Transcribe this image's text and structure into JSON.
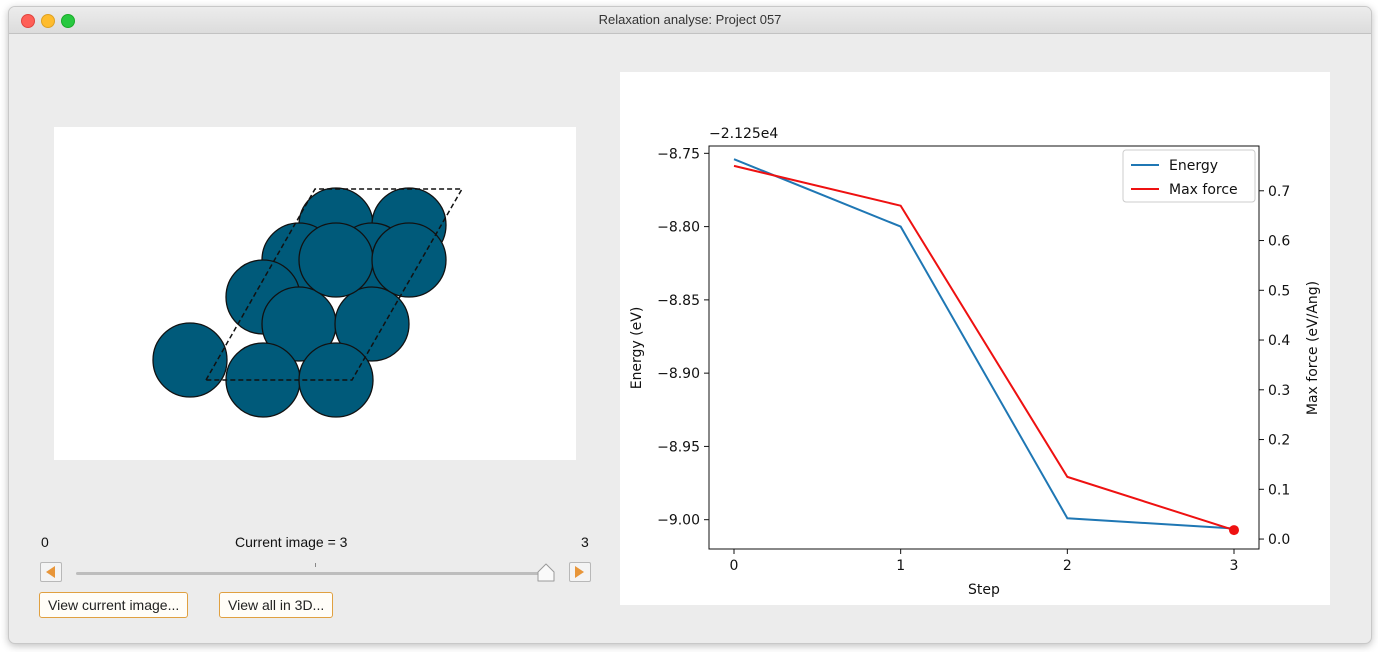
{
  "window": {
    "title": "Relaxation analyse: Project 057"
  },
  "slider": {
    "min_label": "0",
    "max_label": "3",
    "current_label": "Current image =  3",
    "value": 3,
    "min": 0,
    "max": 3
  },
  "buttons": {
    "view_current": "View current image...",
    "view_all": "View all in 3D..."
  },
  "structure": {
    "atom_color": "#005a7a"
  },
  "chart_data": {
    "type": "line",
    "x": [
      0,
      1,
      2,
      3
    ],
    "xlabel": "Step",
    "ylabel": "Energy (eV)",
    "ylabel_right": "Max force (eV/Ang)",
    "offset_label": "−2.125e4",
    "xticks": [
      "0",
      "1",
      "2",
      "3"
    ],
    "yticks_left": [
      "−8.75",
      "−8.80",
      "−8.85",
      "−8.90",
      "−8.95",
      "−9.00"
    ],
    "yticks_right": [
      "0.0",
      "0.1",
      "0.2",
      "0.3",
      "0.4",
      "0.5",
      "0.6",
      "0.7"
    ],
    "ylim_left": [
      -9.02,
      -8.745
    ],
    "ylim_right": [
      -0.02,
      0.79
    ],
    "series": [
      {
        "name": "Energy",
        "axis": "left",
        "color": "#1f77b4",
        "values": [
          -8.754,
          -8.8,
          -8.999,
          -9.006
        ]
      },
      {
        "name": "Max force",
        "axis": "right",
        "color": "#ee1111",
        "values": [
          0.75,
          0.67,
          0.125,
          0.018
        ]
      }
    ],
    "highlight": {
      "series": "Max force",
      "x": 3,
      "color": "#ee1111"
    },
    "legend_position": "top-right"
  }
}
